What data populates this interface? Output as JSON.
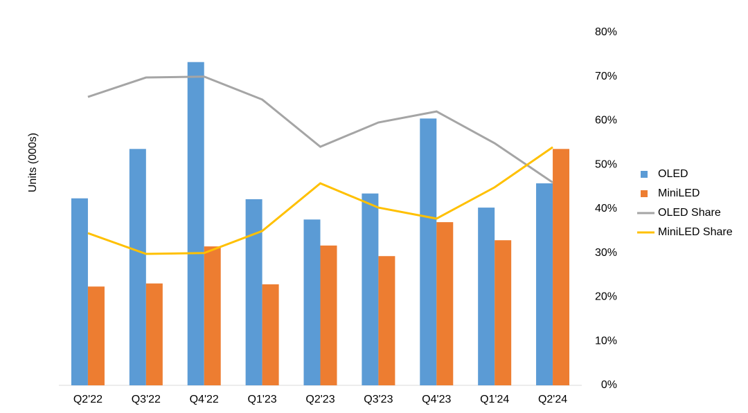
{
  "chart_data": {
    "type": "bar",
    "y_label": "Units  (000s)",
    "categories": [
      "Q2'22",
      "Q3'22",
      "Q4'22",
      "Q1'23",
      "Q2'23",
      "Q3'23",
      "Q4'23",
      "Q1'24",
      "Q2'24"
    ],
    "ylim": [
      0,
      800
    ],
    "y2lim": [
      0,
      80
    ],
    "y2ticks": [
      {
        "value": 0,
        "label": "0%"
      },
      {
        "value": 10,
        "label": "10%"
      },
      {
        "value": 20,
        "label": "20%"
      },
      {
        "value": 30,
        "label": "30%"
      },
      {
        "value": 40,
        "label": "40%"
      },
      {
        "value": 50,
        "label": "50%"
      },
      {
        "value": 60,
        "label": "60%"
      },
      {
        "value": 70,
        "label": "70%"
      },
      {
        "value": 80,
        "label": "80%"
      }
    ],
    "series": [
      {
        "name": "OLED",
        "type": "bar",
        "color": "#5b9bd5",
        "values": [
          424,
          536,
          733,
          422,
          376,
          435,
          605,
          403,
          458
        ]
      },
      {
        "name": "MiniLED",
        "type": "bar",
        "color": "#ed7d31",
        "values": [
          224,
          231,
          315,
          229,
          317,
          293,
          370,
          329,
          536
        ]
      },
      {
        "name": "OLED Share",
        "type": "line",
        "axis": "y2",
        "color": "#a5a5a5",
        "values": [
          65.4,
          69.8,
          70,
          64.8,
          54.1,
          59.6,
          62.1,
          54.9,
          46
        ]
      },
      {
        "name": "MiniLED Share",
        "type": "line",
        "axis": "y2",
        "color": "#ffc000",
        "values": [
          34.5,
          29.8,
          30,
          35,
          45.8,
          40.3,
          37.8,
          44.9,
          54
        ]
      }
    ]
  }
}
